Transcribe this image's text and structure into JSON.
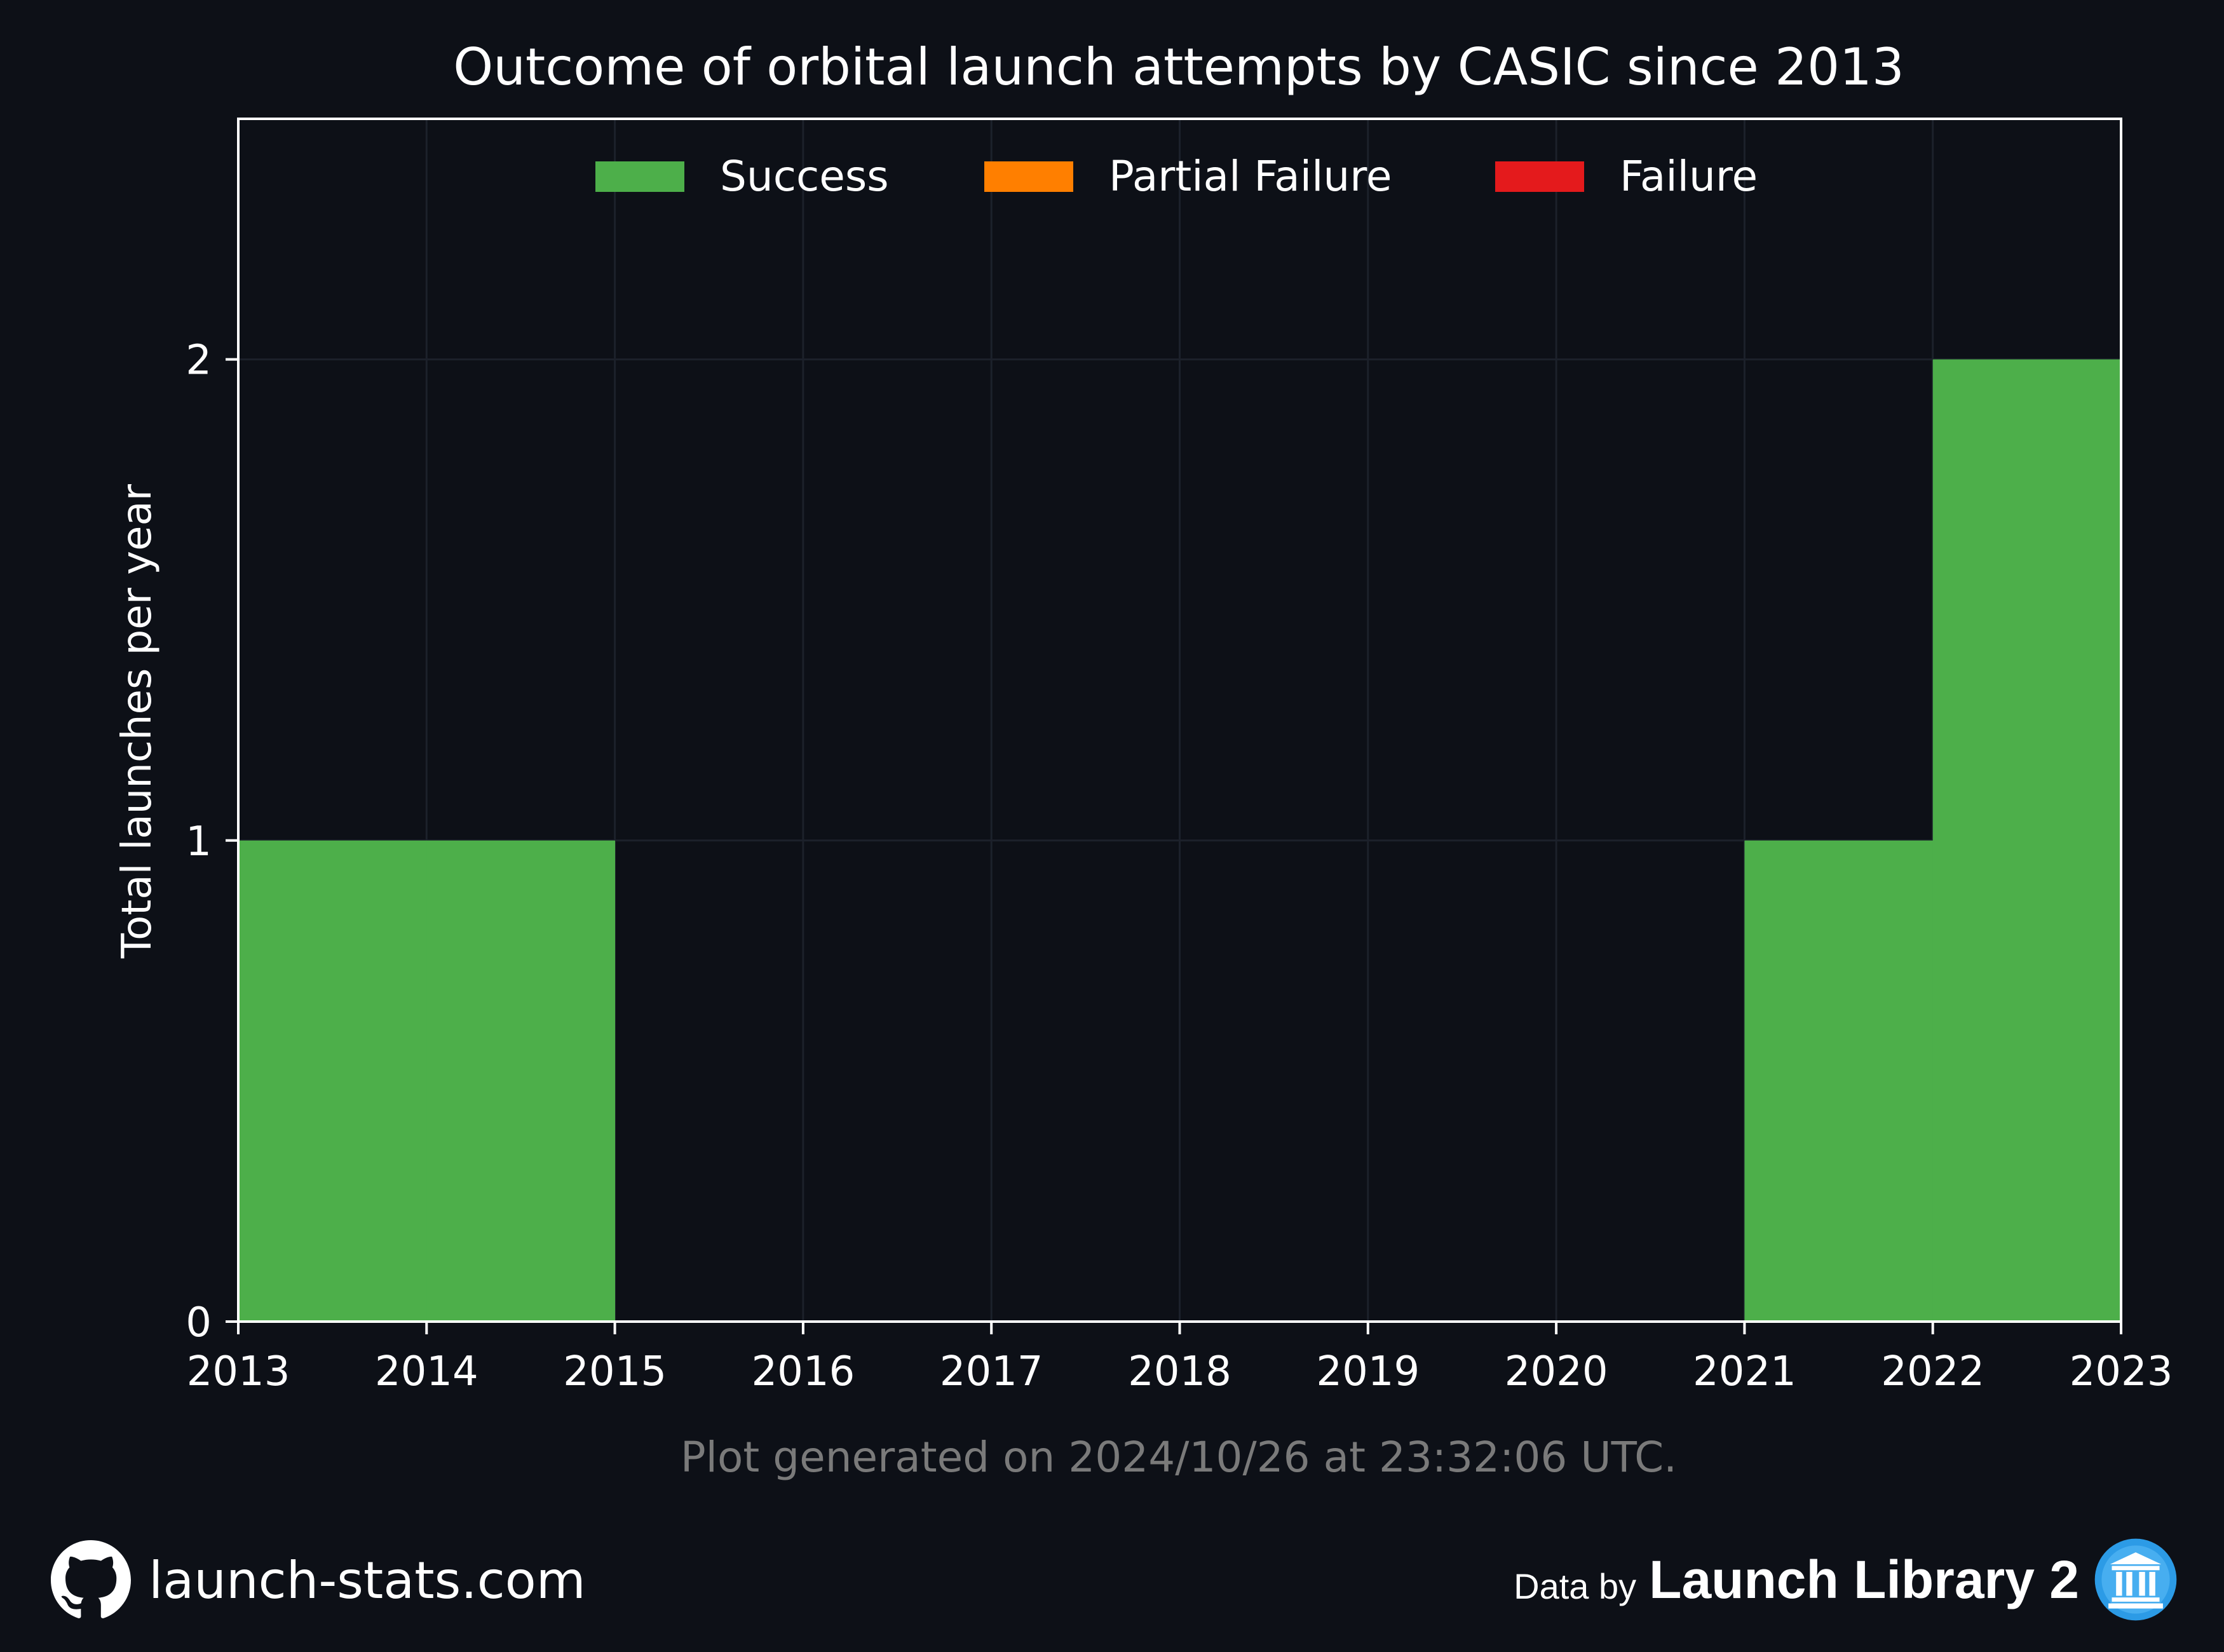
{
  "chart_data": {
    "type": "bar",
    "title": "Outcome of orbital launch attempts by CASIC since 2013",
    "xlabel": "",
    "ylabel": "Total launches per year",
    "x_ticks": [
      "2013",
      "2014",
      "2015",
      "2016",
      "2017",
      "2018",
      "2019",
      "2020",
      "2021",
      "2022",
      "2023"
    ],
    "y_ticks": [
      "0",
      "1",
      "2"
    ],
    "xlim": [
      2013,
      2023
    ],
    "ylim": [
      0,
      2.5
    ],
    "bin_edges": [
      2013,
      2014,
      2015,
      2016,
      2017,
      2018,
      2019,
      2020,
      2021,
      2022,
      2023
    ],
    "categories": [
      "2013",
      "2014",
      "2015",
      "2016",
      "2017",
      "2018",
      "2019",
      "2020",
      "2021",
      "2022"
    ],
    "stacked": true,
    "series": [
      {
        "name": "Success",
        "color": "#4daf4a",
        "values": [
          1,
          1,
          0,
          0,
          0,
          0,
          0,
          0,
          1,
          2
        ]
      },
      {
        "name": "Partial Failure",
        "color": "#ff7f00",
        "values": [
          0,
          0,
          0,
          0,
          0,
          0,
          0,
          0,
          0,
          0
        ]
      },
      {
        "name": "Failure",
        "color": "#e41a1c",
        "values": [
          0,
          0,
          0,
          0,
          0,
          0,
          0,
          0,
          0,
          0
        ]
      }
    ],
    "legend_position": "top-center",
    "grid": true,
    "note": "Plot generated on 2024/10/26 at 23:32:06 UTC."
  },
  "footer": {
    "site": "launch-stats.com",
    "site_icon": "github-icon",
    "data_by": "Data by",
    "source": "Launch Library 2",
    "source_icon": "launch-library-icon"
  },
  "colors": {
    "background": "#0d1017",
    "axes": "#ffffff",
    "grid": "#1c212b",
    "note": "#7a7a7a",
    "source_icon": "#2c9be6"
  }
}
